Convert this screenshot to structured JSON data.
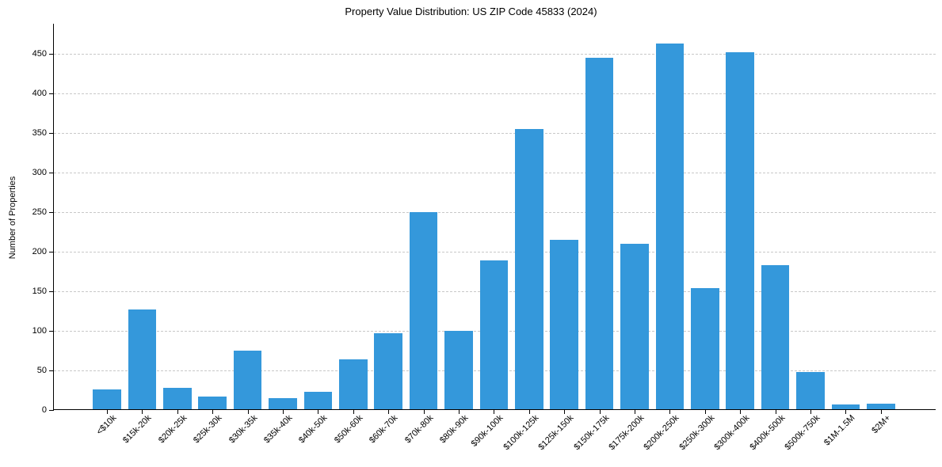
{
  "chart_data": {
    "type": "bar",
    "title": "Property Value Distribution: US ZIP Code 45833 (2024)",
    "xlabel": "",
    "ylabel": "Number of Properties",
    "ylim": [
      0,
      488
    ],
    "yticks": [
      0,
      50,
      100,
      150,
      200,
      250,
      300,
      350,
      400,
      450
    ],
    "grid": "y-dashed",
    "bar_color": "#3498db",
    "categories": [
      "<$10k",
      "$15k-20k",
      "$20k-25k",
      "$25k-30k",
      "$30k-35k",
      "$35k-40k",
      "$40k-50k",
      "$50k-60k",
      "$60k-70k",
      "$70k-80k",
      "$80k-90k",
      "$90k-100k",
      "$100k-125k",
      "$125k-150k",
      "$150k-175k",
      "$175k-200k",
      "$200k-250k",
      "$250k-300k",
      "$300k-400k",
      "$400k-500k",
      "$500k-750k",
      "$1M-1.5M",
      "$2M+"
    ],
    "values": [
      26,
      127,
      28,
      17,
      75,
      15,
      23,
      64,
      97,
      250,
      100,
      189,
      355,
      215,
      445,
      210,
      463,
      154,
      452,
      183,
      48,
      7,
      8
    ]
  }
}
